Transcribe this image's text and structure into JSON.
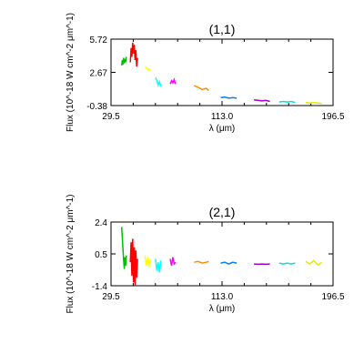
{
  "chart_data": [
    {
      "type": "line",
      "title": "(1,1)",
      "xlabel": "λ (μm)",
      "ylabel": "Flux (10^-18 W cm^-2 μm^-1)",
      "xlim": [
        29.5,
        196.5
      ],
      "ylim": [
        -0.38,
        5.72
      ],
      "xticks": [
        "29.5",
        "113.0",
        "196.5"
      ],
      "yticks": [
        "-0.38",
        "2.67",
        "5.72"
      ],
      "grid": false,
      "series": [
        {
          "color": "#00c000",
          "x": [
            37.5,
            38.0,
            38.5,
            39.0,
            39.5,
            40.0,
            40.5,
            41.0
          ],
          "y": [
            3.3,
            3.8,
            3.4,
            4.0,
            3.5,
            3.9,
            3.6,
            4.1
          ]
        },
        {
          "color": "#ff0000",
          "x": [
            44.0,
            44.6,
            45.2,
            45.8,
            46.4,
            47.0,
            47.6,
            48.2,
            48.8,
            49.4
          ],
          "y": [
            3.6,
            4.9,
            4.1,
            5.4,
            4.4,
            5.2,
            3.8,
            4.7,
            3.2,
            4.0
          ]
        },
        {
          "color": "#ffff00",
          "x": [
            55.0,
            56.0,
            57.0,
            58.0,
            59.0
          ],
          "y": [
            3.2,
            3.1,
            2.9,
            3.0,
            2.8
          ]
        },
        {
          "color": "#00ffff",
          "x": [
            63.0,
            64.0,
            65.0,
            66.0,
            67.0
          ],
          "y": [
            2.2,
            1.9,
            1.5,
            1.8,
            1.4
          ]
        },
        {
          "color": "#ff00ff",
          "x": [
            74.0,
            75.0,
            76.0,
            77.0,
            78.0
          ],
          "y": [
            1.6,
            1.9,
            1.7,
            2.0,
            1.6
          ]
        },
        {
          "color": "#ff8c00",
          "x": [
            92.0,
            95.0,
            98.0,
            101.0,
            103.0
          ],
          "y": [
            1.45,
            1.3,
            1.1,
            1.2,
            1.0
          ]
        },
        {
          "color": "#0080ff",
          "x": [
            112.0,
            115.0,
            118.0,
            121.0,
            124.0
          ],
          "y": [
            0.35,
            0.4,
            0.3,
            0.35,
            0.3
          ]
        },
        {
          "color": "#a000c0",
          "x": [
            137.0,
            140.0,
            143.0,
            146.0,
            149.0
          ],
          "y": [
            0.15,
            0.1,
            0.05,
            0.1,
            0.0
          ]
        },
        {
          "color": "#00e0e0",
          "x": [
            156.0,
            159.0,
            162.0,
            165.0,
            168.0
          ],
          "y": [
            -0.05,
            0.0,
            -0.05,
            0.0,
            -0.1
          ]
        },
        {
          "color": "#e6e600",
          "x": [
            176.0,
            179.0,
            182.0,
            185.0,
            188.0
          ],
          "y": [
            -0.1,
            -0.15,
            -0.1,
            -0.15,
            -0.2
          ]
        }
      ]
    },
    {
      "type": "line",
      "title": "(2,1)",
      "xlabel": "λ (μm)",
      "ylabel": "Flux (10^-18 W cm^-2 μm^-1)",
      "xlim": [
        29.5,
        196.5
      ],
      "ylim": [
        -1.4,
        2.4
      ],
      "xticks": [
        "29.5",
        "113.0",
        "196.5"
      ],
      "yticks": [
        "-1.4",
        "0.5",
        "2.4"
      ],
      "grid": false,
      "series": [
        {
          "color": "#00c000",
          "x": [
            37.5,
            38.0,
            38.5,
            39.0,
            39.5,
            40.0,
            40.5,
            41.0
          ],
          "y": [
            2.1,
            1.5,
            0.8,
            0.1,
            -0.4,
            0.3,
            -0.2,
            0.4
          ]
        },
        {
          "color": "#ff0000",
          "x": [
            44.0,
            44.6,
            45.2,
            45.8,
            46.4,
            47.0,
            47.6,
            48.2,
            48.8,
            49.4
          ],
          "y": [
            0.0,
            1.2,
            -0.8,
            1.4,
            -1.2,
            0.9,
            -1.4,
            0.7,
            -0.9,
            0.2
          ]
        },
        {
          "color": "#ffff00",
          "x": [
            55.0,
            56.0,
            57.0,
            58.0,
            59.0
          ],
          "y": [
            0.4,
            -0.2,
            0.3,
            -0.3,
            0.2
          ]
        },
        {
          "color": "#00ffff",
          "x": [
            63.0,
            64.0,
            65.0,
            66.0,
            67.0
          ],
          "y": [
            0.2,
            -0.5,
            0.0,
            -0.6,
            0.1
          ]
        },
        {
          "color": "#ff00ff",
          "x": [
            74.0,
            75.0,
            76.0,
            77.0,
            78.0
          ],
          "y": [
            0.2,
            -0.2,
            0.3,
            -0.1,
            0.0
          ]
        },
        {
          "color": "#ff8c00",
          "x": [
            92.0,
            95.0,
            98.0,
            101.0,
            103.0
          ],
          "y": [
            0.0,
            0.05,
            -0.05,
            0.0,
            0.05
          ]
        },
        {
          "color": "#0080ff",
          "x": [
            112.0,
            115.0,
            118.0,
            121.0,
            124.0
          ],
          "y": [
            -0.05,
            0.0,
            -0.1,
            0.0,
            -0.05
          ]
        },
        {
          "color": "#a000c0",
          "x": [
            137.0,
            140.0,
            143.0,
            146.0,
            149.0
          ],
          "y": [
            -0.1,
            -0.12,
            -0.1,
            -0.12,
            -0.1
          ]
        },
        {
          "color": "#00e0e0",
          "x": [
            156.0,
            159.0,
            162.0,
            165.0,
            168.0
          ],
          "y": [
            -0.05,
            -0.1,
            -0.05,
            -0.1,
            -0.05
          ]
        },
        {
          "color": "#e6e600",
          "x": [
            176.0,
            179.0,
            182.0,
            185.0,
            188.0
          ],
          "y": [
            0.05,
            -0.1,
            0.1,
            -0.15,
            0.0
          ]
        }
      ]
    }
  ]
}
